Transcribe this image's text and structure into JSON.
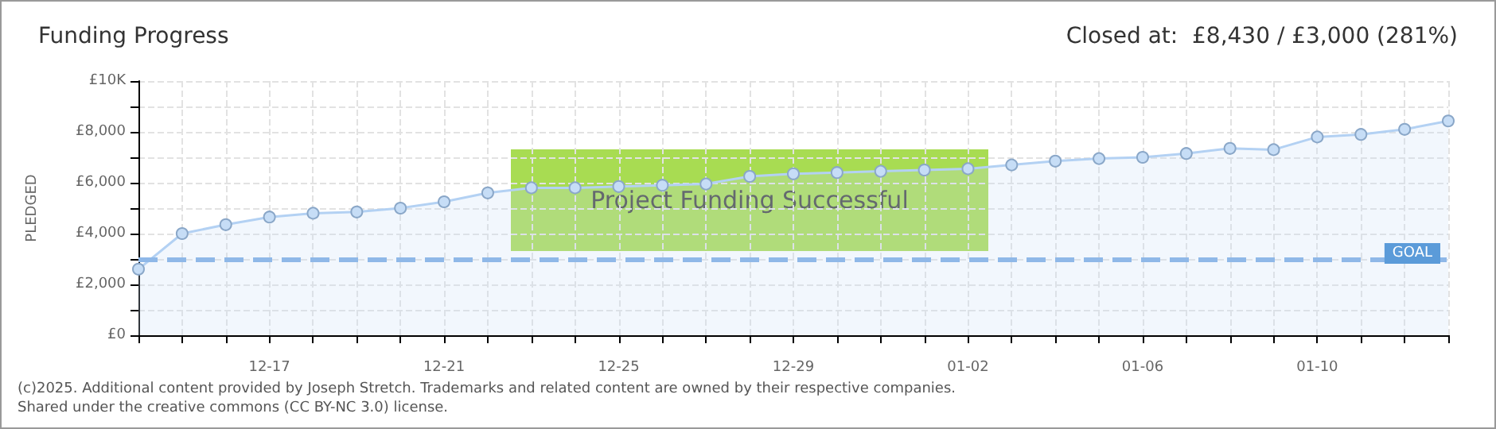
{
  "chart_data": {
    "type": "area",
    "title": "Funding Progress",
    "subtitle": "Closed at:  £8,430 / £3,000 (281%)",
    "ylabel": "PLEDGED",
    "categories": [
      null,
      null,
      null,
      "12-17",
      null,
      null,
      null,
      "12-21",
      null,
      null,
      null,
      "12-25",
      null,
      null,
      null,
      "12-29",
      null,
      null,
      null,
      "01-02",
      null,
      null,
      null,
      "01-06",
      null,
      null,
      null,
      "01-10",
      null,
      null,
      null
    ],
    "series": [
      {
        "color": "#b3d1f3",
        "values": [
          2600,
          4000,
          4350,
          4650,
          4800,
          4850,
          5000,
          5250,
          5600,
          5800,
          5800,
          5850,
          5900,
          5950,
          6250,
          6350,
          6400,
          6450,
          6500,
          6550,
          6700,
          6850,
          6950,
          7000,
          7150,
          7350,
          7300,
          7800,
          7900,
          8100,
          8430
        ]
      }
    ],
    "ylim": [
      0,
      10000
    ],
    "yticks": [
      {
        "value": 0,
        "label": "£0"
      },
      {
        "value": 1000,
        "label": null
      },
      {
        "value": 2000,
        "label": "£2,000"
      },
      {
        "value": 3000,
        "label": null
      },
      {
        "value": 4000,
        "label": "£4,000"
      },
      {
        "value": 5000,
        "label": null
      },
      {
        "value": 6000,
        "label": "£6,000"
      },
      {
        "value": 7000,
        "label": null
      },
      {
        "value": 8000,
        "label": "£8,000"
      },
      {
        "value": 9000,
        "label": null
      },
      {
        "value": 10000,
        "label": "£10K"
      }
    ],
    "ref_lines": [
      {
        "axis": "y",
        "value": 3000,
        "label": "GOAL",
        "color": "#8fb8e8",
        "line_style": "dashed"
      }
    ],
    "annotations": [
      "Project Funding Successful",
      "(c)2025. Additional content provided by Joseph Stretch. Trademarks and related content are owned by their respective companies.",
      "Shared under the creative commons (CC BY-NC 3.0) license."
    ],
    "grid": true,
    "marker": "circle"
  }
}
